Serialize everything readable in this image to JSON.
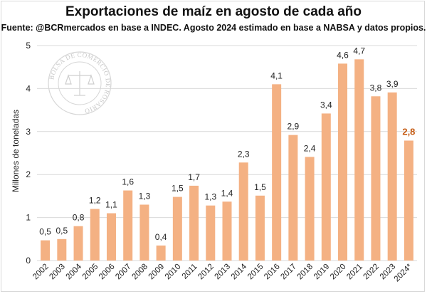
{
  "chart_data": {
    "type": "bar",
    "title": "Exportaciones de maíz en agosto de cada año",
    "subtitle": "Fuente: @BCRmercados en base a INDEC. Agosto 2024 estimado en base a NABSA y datos propios.",
    "ylabel": "Millones de toneladas",
    "xlabel": "",
    "ylim": [
      0,
      5
    ],
    "yticks": [
      "0",
      "1",
      "2",
      "3",
      "4",
      "5"
    ],
    "grid": true,
    "categories": [
      "2002",
      "2003",
      "2004",
      "2005",
      "2006",
      "2007",
      "2008",
      "2009",
      "2010",
      "2011",
      "2012",
      "2013",
      "2014",
      "2015",
      "2016",
      "2017",
      "2018",
      "2019",
      "2020",
      "2021",
      "2022",
      "2023",
      "2024*"
    ],
    "values": [
      0.47,
      0.5,
      0.8,
      1.2,
      1.1,
      1.63,
      1.3,
      0.35,
      1.48,
      1.74,
      1.28,
      1.37,
      2.28,
      1.51,
      4.1,
      2.92,
      2.41,
      3.42,
      4.58,
      4.68,
      3.82,
      3.91,
      2.79
    ],
    "data_labels": [
      "0,5",
      "0,5",
      "0,8",
      "1,2",
      "1,1",
      "1,6",
      "1,3",
      "0,4",
      "1,5",
      "1,7",
      "1,3",
      "1,4",
      "2,3",
      "1,5",
      "4,1",
      "2,9",
      "2,4",
      "3,4",
      "4,6",
      "4,7",
      "3,8",
      "3,9",
      "2,8"
    ],
    "highlight_index": 22,
    "colors": {
      "bar": "#f4b183",
      "highlight_label": "#c55a11",
      "label": "#222222",
      "grid": "#d9d9d9"
    }
  },
  "watermark": {
    "text": "BOLSA DE COMERCIO DE ROSARIO",
    "icon": "scales-of-justice-icon",
    "color": "#c9c9c9"
  }
}
